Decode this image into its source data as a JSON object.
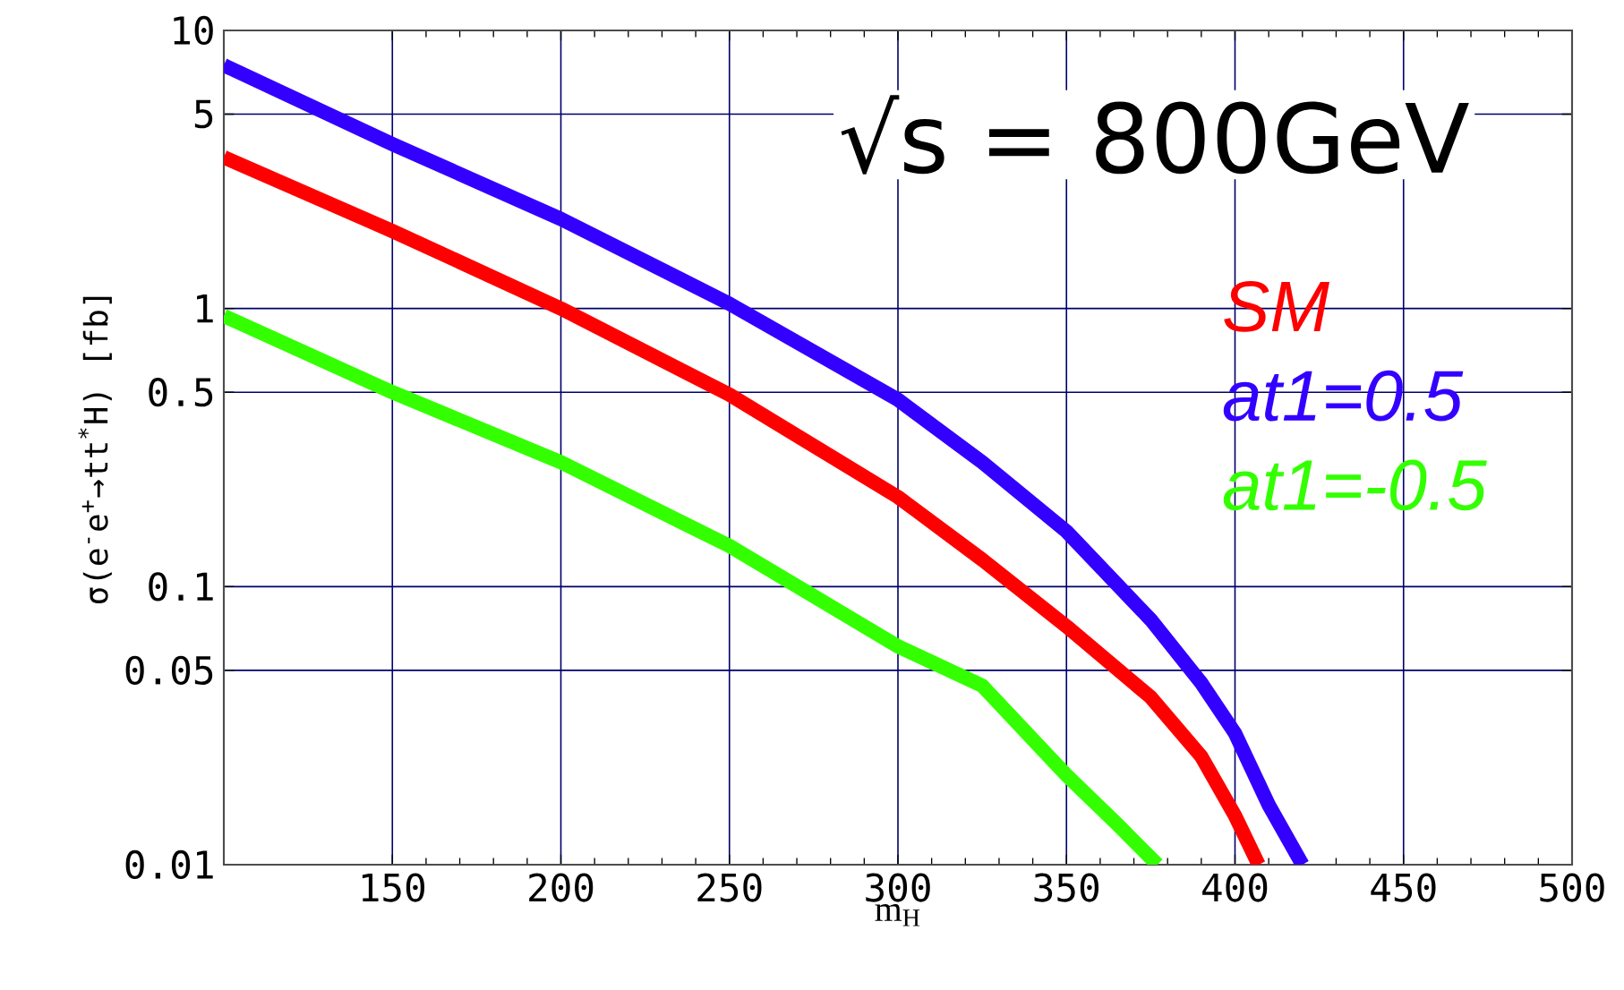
{
  "chart_data": {
    "type": "line",
    "title": "√s = 800GeV",
    "xlabel": "m$_{H}$",
    "ylabel": "σ(e$^{-}$e$^{+}$→tt$^{*}$H) [fb]",
    "x": [
      100,
      150,
      200,
      250,
      300,
      325,
      350,
      375,
      390,
      400,
      410,
      420
    ],
    "series": [
      {
        "name": "SM",
        "color": "#ff0000",
        "x": [
          100,
          150,
          200,
          250,
          300,
          325,
          350,
          375,
          390,
          400,
          407
        ],
        "values": [
          3.5,
          1.9,
          1.0,
          0.49,
          0.21,
          0.125,
          0.072,
          0.04,
          0.0245,
          0.015,
          0.01
        ]
      },
      {
        "name": "at1=0.5",
        "color": "#3300ff",
        "values": [
          7.5,
          3.9,
          2.1,
          1.04,
          0.47,
          0.28,
          0.158,
          0.076,
          0.045,
          0.0297,
          0.0164,
          0.01
        ]
      },
      {
        "name": "at1=-0.5",
        "color": "#33ff00",
        "x": [
          100,
          150,
          200,
          250,
          300,
          325,
          350,
          365,
          377
        ],
        "values": [
          0.94,
          0.5,
          0.28,
          0.14,
          0.061,
          0.044,
          0.021,
          0.014,
          0.01
        ]
      }
    ],
    "xlim": [
      100,
      500
    ],
    "xticks": [
      150,
      200,
      250,
      300,
      350,
      400,
      450,
      500
    ],
    "ylim": [
      0.01,
      10
    ],
    "yticks": [
      0.01,
      0.05,
      0.1,
      0.5,
      1,
      5,
      10
    ],
    "log": "y",
    "grid": true,
    "legend": "right",
    "marker": "none",
    "line_style": "solid"
  }
}
